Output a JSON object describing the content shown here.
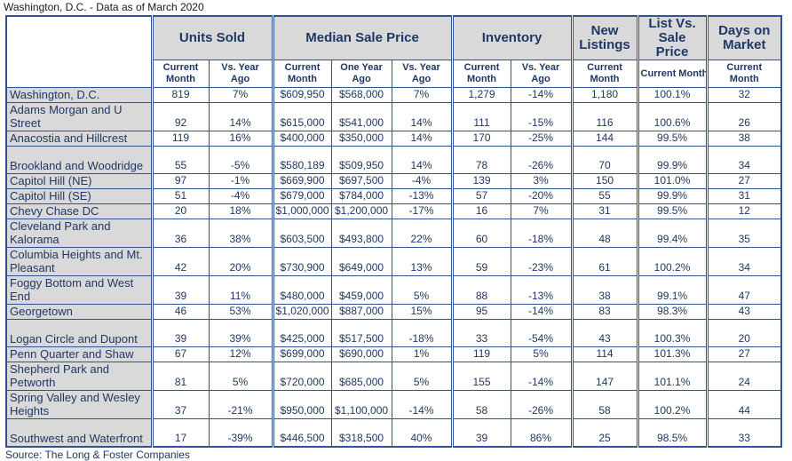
{
  "title": "Washington, D.C. - Data as of March 2020",
  "source": "Source: The Long & Foster Companies",
  "colors": {
    "text": "#1F3864",
    "border": "#2F5496",
    "header_bg": "#D9D9D9",
    "cell_bg": "#FFFFFF",
    "title_text": "#1A1A1A"
  },
  "table": {
    "column_groups": [
      {
        "label": "Units Sold",
        "span": 2
      },
      {
        "label": "Median Sale Price",
        "span": 3
      },
      {
        "label": "Inventory",
        "span": 2
      },
      {
        "label": "New Listings",
        "span": 1
      },
      {
        "label": "List Vs. Sale Price",
        "span": 1
      },
      {
        "label": "Days on Market",
        "span": 1
      }
    ],
    "sub_headers": [
      {
        "label": "Current Month"
      },
      {
        "label": "Vs. Year Ago"
      },
      {
        "label": "Current Month"
      },
      {
        "label": "One Year Ago"
      },
      {
        "label": "Vs. Year Ago"
      },
      {
        "label": "Current Month"
      },
      {
        "label": "Vs. Year Ago"
      },
      {
        "label": "Current Month"
      },
      {
        "label": "Current Month",
        "nowrap": true
      },
      {
        "label": "Current Month"
      }
    ],
    "rows": [
      {
        "name": "Washington, D.C.",
        "tall": false,
        "values": [
          "819",
          "7%",
          "$609,950",
          "$568,000",
          "7%",
          "1,279",
          "-14%",
          "1,180",
          "100.1%",
          "32"
        ]
      },
      {
        "name": "Adams Morgan and U Street",
        "tall": true,
        "values": [
          "92",
          "14%",
          "$615,000",
          "$541,000",
          "14%",
          "111",
          "-15%",
          "116",
          "100.6%",
          "26"
        ]
      },
      {
        "name": "Anacostia and Hillcrest",
        "tall": false,
        "values": [
          "119",
          "16%",
          "$400,000",
          "$350,000",
          "14%",
          "170",
          "-25%",
          "144",
          "99.5%",
          "38"
        ]
      },
      {
        "name": "Brookland and Woodridge",
        "tall": true,
        "values": [
          "55",
          "-5%",
          "$580,189",
          "$509,950",
          "14%",
          "78",
          "-26%",
          "70",
          "99.9%",
          "34"
        ]
      },
      {
        "name": "Capitol Hill (NE)",
        "tall": false,
        "values": [
          "97",
          "-1%",
          "$669,900",
          "$697,500",
          "-4%",
          "139",
          "3%",
          "150",
          "101.0%",
          "27"
        ]
      },
      {
        "name": "Capitol Hill (SE)",
        "tall": false,
        "values": [
          "51",
          "-4%",
          "$679,000",
          "$784,000",
          "-13%",
          "57",
          "-20%",
          "55",
          "99.9%",
          "31"
        ]
      },
      {
        "name": "Chevy Chase DC",
        "tall": false,
        "values": [
          "20",
          "18%",
          "$1,000,000",
          "$1,200,000",
          "-17%",
          "16",
          "7%",
          "31",
          "99.5%",
          "12"
        ]
      },
      {
        "name": "Cleveland Park and Kalorama",
        "tall": true,
        "values": [
          "36",
          "38%",
          "$603,500",
          "$493,800",
          "22%",
          "60",
          "-18%",
          "48",
          "99.4%",
          "35"
        ]
      },
      {
        "name": "Columbia Heights and Mt. Pleasant",
        "tall": true,
        "values": [
          "42",
          "20%",
          "$730,900",
          "$649,000",
          "13%",
          "59",
          "-23%",
          "61",
          "100.2%",
          "34"
        ]
      },
      {
        "name": "Foggy Bottom and West End",
        "tall": true,
        "values": [
          "39",
          "11%",
          "$480,000",
          "$459,000",
          "5%",
          "88",
          "-13%",
          "38",
          "99.1%",
          "47"
        ]
      },
      {
        "name": "Georgetown",
        "tall": false,
        "values": [
          "46",
          "53%",
          "$1,020,000",
          "$887,000",
          "15%",
          "95",
          "-14%",
          "83",
          "98.3%",
          "43"
        ]
      },
      {
        "name": "Logan Circle and Dupont",
        "tall": true,
        "values": [
          "39",
          "39%",
          "$425,000",
          "$517,500",
          "-18%",
          "33",
          "-54%",
          "43",
          "100.3%",
          "20"
        ]
      },
      {
        "name": "Penn Quarter and Shaw",
        "tall": false,
        "values": [
          "67",
          "12%",
          "$699,000",
          "$690,000",
          "1%",
          "119",
          "5%",
          "114",
          "101.3%",
          "27"
        ]
      },
      {
        "name": "Shepherd Park and Petworth",
        "tall": true,
        "values": [
          "81",
          "5%",
          "$720,000",
          "$685,000",
          "5%",
          "155",
          "-14%",
          "147",
          "101.1%",
          "24"
        ]
      },
      {
        "name": "Spring Valley and Wesley Heights",
        "tall": true,
        "values": [
          "37",
          "-21%",
          "$950,000",
          "$1,100,000",
          "-14%",
          "58",
          "-26%",
          "58",
          "100.2%",
          "44"
        ]
      },
      {
        "name": "Southwest and Waterfront",
        "tall": true,
        "values": [
          "17",
          "-39%",
          "$446,500",
          "$318,500",
          "40%",
          "39",
          "86%",
          "25",
          "98.5%",
          "33"
        ]
      }
    ]
  }
}
